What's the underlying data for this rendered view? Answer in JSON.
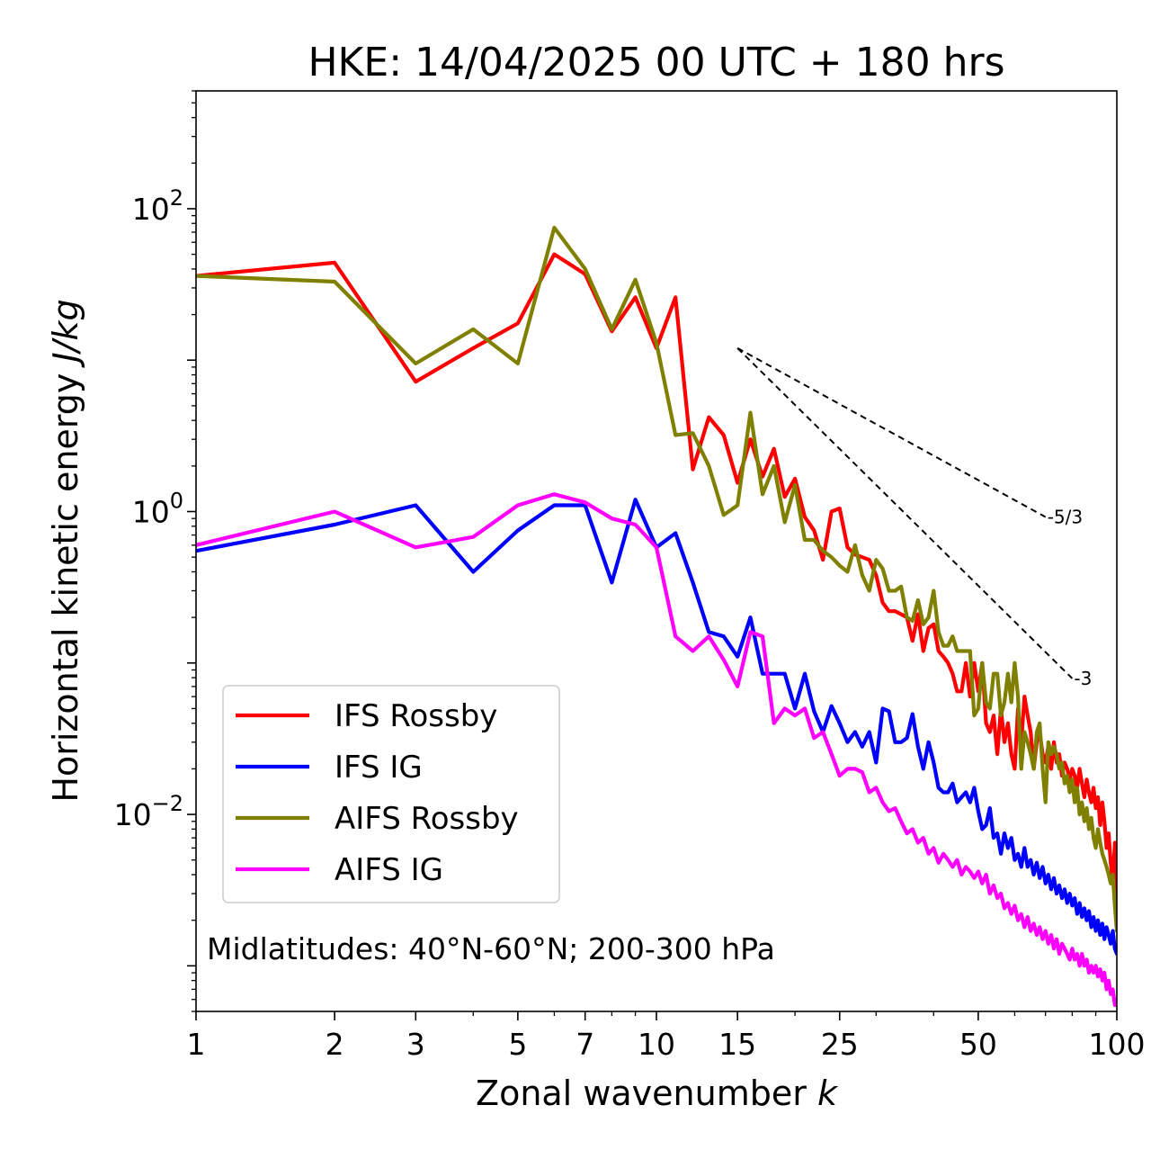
{
  "chart_data": {
    "type": "line",
    "title": "HKE: 14/04/2025 00 UTC + 180 hrs",
    "xlabel_main": "Zonal wavenumber ",
    "xlabel_var": "k",
    "ylabel_main": "Horizontal kinetic energy ",
    "ylabel_unit": "J/kg",
    "x_scale": "log",
    "y_scale": "log",
    "xlim": [
      1,
      100
    ],
    "ylim": [
      0.0005,
      600
    ],
    "x_ticks": [
      {
        "value": 1,
        "label": "1"
      },
      {
        "value": 2,
        "label": "2"
      },
      {
        "value": 3,
        "label": "3"
      },
      {
        "value": 5,
        "label": "5"
      },
      {
        "value": 7,
        "label": "7"
      },
      {
        "value": 10,
        "label": "10"
      },
      {
        "value": 15,
        "label": "15"
      },
      {
        "value": 25,
        "label": "25"
      },
      {
        "value": 50,
        "label": "50"
      },
      {
        "value": 100,
        "label": "100"
      }
    ],
    "y_ticks": [
      {
        "value": 100,
        "base": "10",
        "exp": "2"
      },
      {
        "value": 1,
        "base": "10",
        "exp": "0"
      },
      {
        "value": 0.01,
        "base": "10",
        "exp": "−2"
      }
    ],
    "grid": false,
    "legend_position": "lower-left",
    "annotation": "Midlatitudes: 40°N-60°N; 200-300 hPa",
    "reference_slopes": [
      {
        "label": "-5/3",
        "slope": -1.6667,
        "x_start": 15,
        "x_end": 70,
        "y_start": 12
      },
      {
        "label": "-3",
        "slope": -3,
        "x_start": 15,
        "x_end": 80,
        "y_start": 12
      }
    ],
    "series": [
      {
        "name": "IFS Rossby",
        "color": "#ff0000",
        "x": [
          1,
          2,
          3,
          4,
          5,
          6,
          7,
          8,
          9,
          10,
          11,
          12,
          13,
          14,
          15,
          16,
          17,
          18,
          19,
          20,
          21,
          22,
          23,
          24,
          25,
          26,
          27,
          28,
          29,
          30,
          31,
          32,
          33,
          34,
          35,
          36,
          37,
          38,
          39,
          40,
          41,
          42,
          43,
          44,
          45,
          46,
          47,
          48,
          49,
          50,
          51,
          52,
          53,
          54,
          55,
          56,
          57,
          58,
          59,
          60,
          61,
          62,
          63,
          64,
          65,
          66,
          67,
          68,
          69,
          70,
          71,
          72,
          73,
          74,
          75,
          76,
          77,
          78,
          79,
          80,
          81,
          82,
          83,
          84,
          85,
          86,
          87,
          88,
          89,
          90,
          91,
          92,
          93,
          94,
          95,
          96,
          97,
          98,
          99,
          100
        ],
        "y": [
          36,
          44,
          7.2,
          12,
          17.5,
          50,
          37,
          15.5,
          26,
          12,
          26,
          1.9,
          4.2,
          3.2,
          1.55,
          3.0,
          1.7,
          2.6,
          1.25,
          1.65,
          0.92,
          0.75,
          0.48,
          1.0,
          1.05,
          0.58,
          0.52,
          0.5,
          0.48,
          0.38,
          0.25,
          0.22,
          0.22,
          0.21,
          0.2,
          0.14,
          0.21,
          0.12,
          0.17,
          0.18,
          0.12,
          0.11,
          0.1,
          0.085,
          0.065,
          0.065,
          0.1,
          0.06,
          0.1,
          0.065,
          0.1,
          0.04,
          0.035,
          0.045,
          0.025,
          0.05,
          0.03,
          0.04,
          0.025,
          0.02,
          0.05,
          0.03,
          0.06,
          0.045,
          0.035,
          0.02,
          0.03,
          0.035,
          0.025,
          0.022,
          0.028,
          0.02,
          0.03,
          0.022,
          0.025,
          0.018,
          0.022,
          0.02,
          0.017,
          0.02,
          0.018,
          0.015,
          0.02,
          0.016,
          0.013,
          0.017,
          0.014,
          0.012,
          0.015,
          0.011,
          0.013,
          0.0085,
          0.012,
          0.009,
          0.006,
          0.0075,
          0.0048,
          0.0035,
          0.0065,
          0.0025
        ]
      },
      {
        "name": "IFS IG",
        "color": "#0000ff",
        "x": [
          1,
          2,
          3,
          4,
          5,
          6,
          7,
          8,
          9,
          10,
          11,
          12,
          13,
          14,
          15,
          16,
          17,
          18,
          19,
          20,
          21,
          22,
          23,
          24,
          25,
          26,
          27,
          28,
          29,
          30,
          31,
          32,
          33,
          34,
          35,
          36,
          37,
          38,
          39,
          40,
          41,
          42,
          43,
          44,
          45,
          46,
          47,
          48,
          49,
          50,
          51,
          52,
          53,
          54,
          55,
          56,
          57,
          58,
          59,
          60,
          61,
          62,
          63,
          64,
          65,
          66,
          67,
          68,
          69,
          70,
          71,
          72,
          73,
          74,
          75,
          76,
          77,
          78,
          79,
          80,
          81,
          82,
          83,
          84,
          85,
          86,
          87,
          88,
          89,
          90,
          91,
          92,
          93,
          94,
          95,
          96,
          97,
          98,
          99,
          100
        ],
        "y": [
          0.55,
          0.82,
          1.1,
          0.4,
          0.75,
          1.1,
          1.1,
          0.34,
          1.2,
          0.58,
          0.72,
          0.34,
          0.16,
          0.15,
          0.11,
          0.2,
          0.085,
          0.085,
          0.085,
          0.05,
          0.085,
          0.048,
          0.035,
          0.052,
          0.04,
          0.03,
          0.035,
          0.028,
          0.035,
          0.022,
          0.05,
          0.048,
          0.03,
          0.03,
          0.032,
          0.046,
          0.028,
          0.02,
          0.03,
          0.022,
          0.015,
          0.014,
          0.014,
          0.016,
          0.012,
          0.013,
          0.014,
          0.012,
          0.015,
          0.0105,
          0.008,
          0.0085,
          0.011,
          0.007,
          0.0075,
          0.0055,
          0.0075,
          0.006,
          0.007,
          0.005,
          0.0055,
          0.0045,
          0.006,
          0.0045,
          0.005,
          0.004,
          0.0048,
          0.0038,
          0.0045,
          0.0035,
          0.004,
          0.0032,
          0.0038,
          0.003,
          0.0034,
          0.0028,
          0.0032,
          0.0026,
          0.003,
          0.0025,
          0.0028,
          0.0022,
          0.0026,
          0.0021,
          0.0024,
          0.002,
          0.0023,
          0.0018,
          0.0021,
          0.0017,
          0.002,
          0.0016,
          0.0019,
          0.0015,
          0.0018,
          0.0016,
          0.0014,
          0.0017,
          0.0013,
          0.0012
        ]
      },
      {
        "name": "AIFS Rossby",
        "color": "#808000",
        "x": [
          1,
          2,
          3,
          4,
          5,
          6,
          7,
          8,
          9,
          10,
          11,
          12,
          13,
          14,
          15,
          16,
          17,
          18,
          19,
          20,
          21,
          22,
          23,
          24,
          25,
          26,
          27,
          28,
          29,
          30,
          31,
          32,
          33,
          34,
          35,
          36,
          37,
          38,
          39,
          40,
          41,
          42,
          43,
          44,
          45,
          46,
          47,
          48,
          49,
          50,
          51,
          52,
          53,
          54,
          55,
          56,
          57,
          58,
          59,
          60,
          61,
          62,
          63,
          64,
          65,
          66,
          67,
          68,
          69,
          70,
          71,
          72,
          73,
          74,
          75,
          76,
          77,
          78,
          79,
          80,
          81,
          82,
          83,
          84,
          85,
          86,
          87,
          88,
          89,
          90,
          91,
          92,
          93,
          94,
          95,
          96,
          97,
          98,
          99,
          100
        ],
        "y": [
          36,
          33,
          9.5,
          16,
          9.5,
          75,
          40,
          16,
          34,
          13,
          3.2,
          3.3,
          2.0,
          0.95,
          1.1,
          4.5,
          1.3,
          2.0,
          0.85,
          1.5,
          0.65,
          0.65,
          0.55,
          0.5,
          0.44,
          0.4,
          0.6,
          0.38,
          0.3,
          0.48,
          0.42,
          0.3,
          0.3,
          0.32,
          0.2,
          0.19,
          0.26,
          0.18,
          0.2,
          0.3,
          0.16,
          0.13,
          0.13,
          0.15,
          0.12,
          0.12,
          0.12,
          0.12,
          0.045,
          0.05,
          0.1,
          0.055,
          0.05,
          0.085,
          0.085,
          0.045,
          0.055,
          0.085,
          0.055,
          0.1,
          0.06,
          0.02,
          0.035,
          0.03,
          0.025,
          0.02,
          0.035,
          0.04,
          0.02,
          0.012,
          0.03,
          0.025,
          0.028,
          0.025,
          0.02,
          0.022,
          0.016,
          0.018,
          0.014,
          0.017,
          0.012,
          0.015,
          0.01,
          0.012,
          0.009,
          0.011,
          0.008,
          0.0095,
          0.007,
          0.006,
          0.008,
          0.0065,
          0.0055,
          0.005,
          0.0045,
          0.004,
          0.0035,
          0.004,
          0.0025,
          0.0017
        ]
      },
      {
        "name": "AIFS IG",
        "color": "#ff00ff",
        "x": [
          1,
          2,
          3,
          4,
          5,
          6,
          7,
          8,
          9,
          10,
          11,
          12,
          13,
          14,
          15,
          16,
          17,
          18,
          19,
          20,
          21,
          22,
          23,
          24,
          25,
          26,
          27,
          28,
          29,
          30,
          31,
          32,
          33,
          34,
          35,
          36,
          37,
          38,
          39,
          40,
          41,
          42,
          43,
          44,
          45,
          46,
          47,
          48,
          49,
          50,
          51,
          52,
          53,
          54,
          55,
          56,
          57,
          58,
          59,
          60,
          61,
          62,
          63,
          64,
          65,
          66,
          67,
          68,
          69,
          70,
          71,
          72,
          73,
          74,
          75,
          76,
          77,
          78,
          79,
          80,
          81,
          82,
          83,
          84,
          85,
          86,
          87,
          88,
          89,
          90,
          91,
          92,
          93,
          94,
          95,
          96,
          97,
          98,
          99,
          100
        ],
        "y": [
          0.6,
          1.0,
          0.58,
          0.68,
          1.1,
          1.3,
          1.15,
          0.9,
          0.82,
          0.58,
          0.15,
          0.12,
          0.15,
          0.105,
          0.07,
          0.16,
          0.15,
          0.04,
          0.05,
          0.045,
          0.05,
          0.032,
          0.035,
          0.025,
          0.018,
          0.02,
          0.02,
          0.019,
          0.014,
          0.015,
          0.012,
          0.0105,
          0.011,
          0.009,
          0.0075,
          0.008,
          0.0065,
          0.007,
          0.0055,
          0.006,
          0.0048,
          0.0055,
          0.005,
          0.0045,
          0.005,
          0.004,
          0.0045,
          0.0042,
          0.0038,
          0.0042,
          0.0035,
          0.004,
          0.003,
          0.0034,
          0.0028,
          0.003,
          0.0024,
          0.0026,
          0.0022,
          0.0025,
          0.002,
          0.0022,
          0.0018,
          0.0021,
          0.0017,
          0.0019,
          0.0016,
          0.0018,
          0.0015,
          0.0017,
          0.0014,
          0.0016,
          0.0013,
          0.0015,
          0.0012,
          0.0014,
          0.0013,
          0.0012,
          0.0011,
          0.0013,
          0.0011,
          0.0012,
          0.001,
          0.0012,
          0.001,
          0.0011,
          0.0009,
          0.001,
          0.0009,
          0.001,
          0.00085,
          0.00095,
          0.0008,
          0.0009,
          0.0007,
          0.0008,
          0.00065,
          0.0007,
          0.00055,
          0.0006
        ]
      }
    ]
  }
}
